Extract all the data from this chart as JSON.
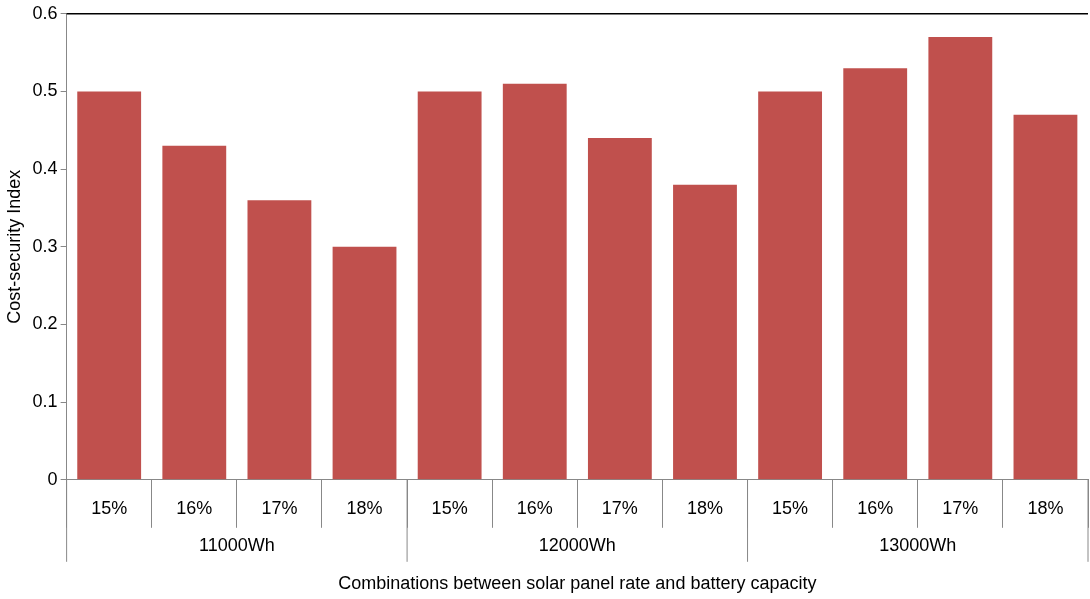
{
  "chart_data": {
    "type": "bar",
    "xlabel": "Combinations between solar panel rate and battery capacity",
    "ylabel": "Cost-security Index",
    "categories": [
      "15%",
      "16%",
      "17%",
      "18%",
      "15%",
      "16%",
      "17%",
      "18%",
      "15%",
      "16%",
      "17%",
      "18%"
    ],
    "values": [
      0.5,
      0.43,
      0.36,
      0.3,
      0.5,
      0.51,
      0.44,
      0.38,
      0.5,
      0.53,
      0.57,
      0.47
    ],
    "color": "#c0504d",
    "ylim": [
      0,
      0.6
    ],
    "yticks": [
      0,
      0.1,
      0.2,
      0.3,
      0.4,
      0.5,
      0.6
    ],
    "grid": false,
    "legend": false,
    "annotations": [
      "11000Wh",
      "12000Wh",
      "13000Wh"
    ]
  }
}
